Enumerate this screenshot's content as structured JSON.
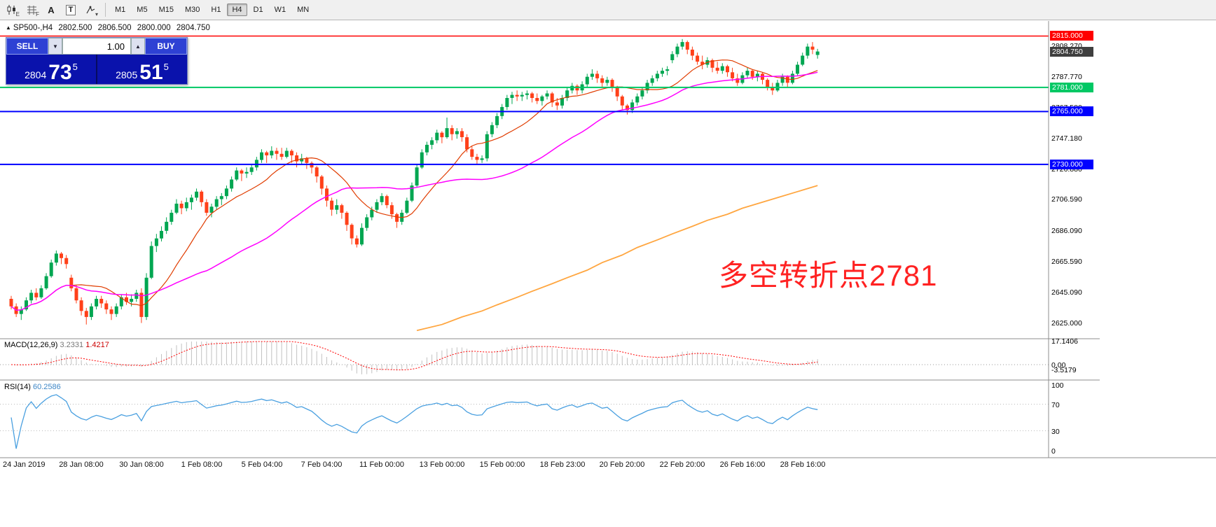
{
  "toolbar": {
    "tools": [
      {
        "name": "chart-type",
        "badge": "E"
      },
      {
        "name": "grid",
        "badge": "F"
      },
      {
        "name": "text",
        "badge": "A"
      },
      {
        "name": "textbox",
        "badge": "T"
      },
      {
        "name": "crosshair",
        "badge": "▾"
      }
    ],
    "timeframes": [
      "M1",
      "M5",
      "M15",
      "M30",
      "H1",
      "H4",
      "D1",
      "W1",
      "MN"
    ],
    "active_timeframe": "H4"
  },
  "chart_header": {
    "arrow": "▲",
    "title": "SP500-,H4",
    "open": "2802.500",
    "high": "2806.500",
    "low": "2800.000",
    "close": "2804.750"
  },
  "trade_panel": {
    "sell_label": "SELL",
    "buy_label": "BUY",
    "volume": "1.00",
    "volume_down_icon": "▼",
    "volume_up_icon": "▲",
    "sell_price": {
      "big": "2804",
      "mid": "73",
      "sup": "5"
    },
    "buy_price": {
      "big": "2805",
      "mid": "51",
      "sup": "5"
    }
  },
  "annotation": {
    "text": "多空转折点2781",
    "color": "#ff2222"
  },
  "levels": [
    {
      "label": "2815.000",
      "value": 2815.0,
      "color": "#FF0000",
      "width": 1.5
    },
    {
      "label": "2781.000",
      "value": 2781.0,
      "color": "#00C864",
      "width": 2
    },
    {
      "label": "2765.000",
      "value": 2765.0,
      "color": "#0000FF",
      "width": 2
    },
    {
      "label": "2730.000",
      "value": 2730.0,
      "color": "#0000FF",
      "width": 2
    }
  ],
  "current_price": {
    "label": "2804.750",
    "value": 2804.75,
    "box_color": "#3f3f3f"
  },
  "price_axis": {
    "ticks": [
      {
        "label": "2808.270",
        "value": 2808.27
      },
      {
        "label": "2787.770",
        "value": 2787.77
      },
      {
        "label": "2767.580",
        "value": 2767.58
      },
      {
        "label": "2747.180",
        "value": 2747.18
      },
      {
        "label": "2726.880",
        "value": 2726.88
      },
      {
        "label": "2706.590",
        "value": 2706.59
      },
      {
        "label": "2686.090",
        "value": 2686.09
      },
      {
        "label": "2665.590",
        "value": 2665.59
      },
      {
        "label": "2645.090",
        "value": 2645.09
      },
      {
        "label": "2625.000",
        "value": 2625.0
      }
    ]
  },
  "time_axis": {
    "labels": [
      "24 Jan 2019",
      "28 Jan 08:00",
      "30 Jan 08:00",
      "1 Feb 08:00",
      "5 Feb 04:00",
      "7 Feb 04:00",
      "11 Feb 00:00",
      "13 Feb 00:00",
      "15 Feb 00:00",
      "18 Feb 23:00",
      "20 Feb 20:00",
      "22 Feb 20:00",
      "26 Feb 16:00",
      "28 Feb 16:00"
    ]
  },
  "indicators": {
    "macd": {
      "name": "MACD(12,26,9)",
      "main_value": "3.2331",
      "signal_value": "1.4217",
      "axis_labels": [
        {
          "label": "17.1406",
          "value": 17.1406
        },
        {
          "label": "0.00",
          "value": 0.0
        },
        {
          "label": "-3.5179",
          "value": -3.5179
        }
      ]
    },
    "rsi": {
      "name": "RSI(14)",
      "value": "60.2586",
      "axis_labels": [
        {
          "label": "100",
          "value": 100
        },
        {
          "label": "70",
          "value": 70
        },
        {
          "label": "30",
          "value": 30
        },
        {
          "label": "0",
          "value": 0
        }
      ]
    }
  },
  "chart_data": {
    "type": "candlestick",
    "symbol": "SP500-",
    "timeframe": "H4",
    "y_range": [
      2622,
      2818
    ],
    "up_color": "#00A651",
    "down_color": "#FF4019",
    "ohlc": [
      [
        2641,
        2643,
        2634,
        2636
      ],
      [
        2636,
        2638,
        2629,
        2631
      ],
      [
        2631,
        2636,
        2627,
        2634
      ],
      [
        2634,
        2642,
        2633,
        2640
      ],
      [
        2640,
        2647,
        2638,
        2645
      ],
      [
        2645,
        2648,
        2640,
        2642
      ],
      [
        2642,
        2650,
        2641,
        2648
      ],
      [
        2648,
        2658,
        2647,
        2656
      ],
      [
        2656,
        2667,
        2655,
        2665
      ],
      [
        2665,
        2673,
        2663,
        2671
      ],
      [
        2671,
        2672,
        2664,
        2668
      ],
      [
        2668,
        2670,
        2661,
        2664
      ],
      [
        2655,
        2657,
        2646,
        2648
      ],
      [
        2648,
        2650,
        2638,
        2640
      ],
      [
        2640,
        2642,
        2630,
        2633
      ],
      [
        2633,
        2635,
        2624,
        2629
      ],
      [
        2629,
        2638,
        2627,
        2636
      ],
      [
        2636,
        2643,
        2634,
        2641
      ],
      [
        2641,
        2643,
        2635,
        2638
      ],
      [
        2638,
        2640,
        2631,
        2634
      ],
      [
        2634,
        2636,
        2627,
        2631
      ],
      [
        2631,
        2638,
        2629,
        2636
      ],
      [
        2636,
        2644,
        2634,
        2642
      ],
      [
        2642,
        2645,
        2637,
        2639
      ],
      [
        2639,
        2644,
        2636,
        2641
      ],
      [
        2641,
        2647,
        2639,
        2645
      ],
      [
        2645,
        2648,
        2625,
        2629
      ],
      [
        2629,
        2658,
        2627,
        2655
      ],
      [
        2655,
        2679,
        2654,
        2676
      ],
      [
        2676,
        2684,
        2672,
        2681
      ],
      [
        2681,
        2689,
        2679,
        2686
      ],
      [
        2686,
        2695,
        2684,
        2692
      ],
      [
        2692,
        2700,
        2690,
        2698
      ],
      [
        2698,
        2707,
        2697,
        2704
      ],
      [
        2704,
        2706,
        2697,
        2701
      ],
      [
        2701,
        2708,
        2699,
        2705
      ],
      [
        2705,
        2710,
        2700,
        2708
      ],
      [
        2708,
        2714,
        2706,
        2712
      ],
      [
        2712,
        2713,
        2702,
        2705
      ],
      [
        2705,
        2707,
        2696,
        2698
      ],
      [
        2698,
        2704,
        2695,
        2702
      ],
      [
        2702,
        2709,
        2700,
        2707
      ],
      [
        2707,
        2711,
        2703,
        2709
      ],
      [
        2709,
        2716,
        2707,
        2714
      ],
      [
        2714,
        2722,
        2712,
        2720
      ],
      [
        2720,
        2728,
        2719,
        2726
      ],
      [
        2726,
        2727,
        2719,
        2724
      ],
      [
        2724,
        2728,
        2721,
        2725
      ],
      [
        2725,
        2730,
        2723,
        2728
      ],
      [
        2728,
        2735,
        2726,
        2733
      ],
      [
        2733,
        2740,
        2731,
        2738
      ],
      [
        2738,
        2739,
        2731,
        2736
      ],
      [
        2736,
        2742,
        2734,
        2739
      ],
      [
        2739,
        2741,
        2733,
        2737
      ],
      [
        2737,
        2741,
        2733,
        2735
      ],
      [
        2735,
        2741,
        2734,
        2739
      ],
      [
        2739,
        2740,
        2731,
        2736
      ],
      [
        2736,
        2738,
        2728,
        2732
      ],
      [
        2732,
        2737,
        2730,
        2734
      ],
      [
        2734,
        2735,
        2727,
        2731
      ],
      [
        2731,
        2732,
        2724,
        2728
      ],
      [
        2728,
        2729,
        2718,
        2722
      ],
      [
        2722,
        2723,
        2710,
        2714
      ],
      [
        2714,
        2716,
        2702,
        2706
      ],
      [
        2706,
        2708,
        2696,
        2700
      ],
      [
        2700,
        2707,
        2697,
        2703
      ],
      [
        2703,
        2704,
        2694,
        2698
      ],
      [
        2698,
        2699,
        2686,
        2690
      ],
      [
        2690,
        2691,
        2677,
        2681
      ],
      [
        2681,
        2683,
        2675,
        2677
      ],
      [
        2677,
        2691,
        2676,
        2688
      ],
      [
        2688,
        2697,
        2686,
        2695
      ],
      [
        2695,
        2702,
        2693,
        2700
      ],
      [
        2700,
        2707,
        2698,
        2705
      ],
      [
        2705,
        2711,
        2703,
        2709
      ],
      [
        2709,
        2710,
        2701,
        2703
      ],
      [
        2703,
        2705,
        2694,
        2697
      ],
      [
        2697,
        2698,
        2688,
        2692
      ],
      [
        2692,
        2700,
        2690,
        2698
      ],
      [
        2698,
        2708,
        2697,
        2706
      ],
      [
        2706,
        2718,
        2705,
        2716
      ],
      [
        2716,
        2730,
        2715,
        2728
      ],
      [
        2728,
        2740,
        2727,
        2738
      ],
      [
        2738,
        2745,
        2736,
        2743
      ],
      [
        2743,
        2748,
        2740,
        2746
      ],
      [
        2746,
        2753,
        2744,
        2751
      ],
      [
        2751,
        2752,
        2744,
        2748
      ],
      [
        2748,
        2761,
        2747,
        2754
      ],
      [
        2754,
        2756,
        2746,
        2750
      ],
      [
        2750,
        2754,
        2747,
        2752
      ],
      [
        2752,
        2754,
        2745,
        2748
      ],
      [
        2748,
        2750,
        2738,
        2740
      ],
      [
        2740,
        2742,
        2733,
        2735
      ],
      [
        2735,
        2737,
        2730,
        2733
      ],
      [
        2733,
        2736,
        2731,
        2734
      ],
      [
        2734,
        2752,
        2732,
        2750
      ],
      [
        2750,
        2758,
        2748,
        2756
      ],
      [
        2756,
        2764,
        2754,
        2762
      ],
      [
        2762,
        2770,
        2760,
        2768
      ],
      [
        2768,
        2776,
        2766,
        2774
      ],
      [
        2774,
        2778,
        2770,
        2776
      ],
      [
        2776,
        2779,
        2772,
        2775
      ],
      [
        2775,
        2778,
        2772,
        2776
      ],
      [
        2776,
        2779,
        2773,
        2777
      ],
      [
        2777,
        2778,
        2771,
        2774
      ],
      [
        2774,
        2777,
        2770,
        2772
      ],
      [
        2772,
        2776,
        2769,
        2775
      ],
      [
        2775,
        2779,
        2773,
        2777
      ],
      [
        2777,
        2778,
        2768,
        2771
      ],
      [
        2771,
        2774,
        2766,
        2769
      ],
      [
        2769,
        2776,
        2767,
        2774
      ],
      [
        2774,
        2781,
        2772,
        2779
      ],
      [
        2779,
        2784,
        2777,
        2782
      ],
      [
        2782,
        2783,
        2776,
        2779
      ],
      [
        2779,
        2785,
        2777,
        2783
      ],
      [
        2783,
        2790,
        2781,
        2788
      ],
      [
        2788,
        2793,
        2786,
        2790
      ],
      [
        2790,
        2792,
        2784,
        2787
      ],
      [
        2787,
        2789,
        2781,
        2784
      ],
      [
        2784,
        2788,
        2782,
        2786
      ],
      [
        2786,
        2787,
        2778,
        2781
      ],
      [
        2781,
        2782,
        2772,
        2775
      ],
      [
        2775,
        2776,
        2766,
        2769
      ],
      [
        2769,
        2770,
        2763,
        2766
      ],
      [
        2766,
        2773,
        2764,
        2771
      ],
      [
        2771,
        2777,
        2769,
        2775
      ],
      [
        2775,
        2781,
        2773,
        2779
      ],
      [
        2779,
        2786,
        2777,
        2784
      ],
      [
        2784,
        2789,
        2782,
        2787
      ],
      [
        2787,
        2792,
        2785,
        2790
      ],
      [
        2790,
        2794,
        2788,
        2792
      ],
      [
        2792,
        2795,
        2789,
        2793
      ],
      [
        2799,
        2805,
        2797,
        2803
      ],
      [
        2803,
        2810,
        2801,
        2808
      ],
      [
        2808,
        2813,
        2806,
        2811
      ],
      [
        2811,
        2812,
        2803,
        2806
      ],
      [
        2806,
        2808,
        2799,
        2802
      ],
      [
        2802,
        2804,
        2796,
        2798
      ],
      [
        2798,
        2802,
        2793,
        2796
      ],
      [
        2796,
        2801,
        2794,
        2799
      ],
      [
        2799,
        2800,
        2791,
        2794
      ],
      [
        2794,
        2798,
        2790,
        2792
      ],
      [
        2792,
        2797,
        2790,
        2795
      ],
      [
        2795,
        2796,
        2788,
        2791
      ],
      [
        2791,
        2794,
        2785,
        2787
      ],
      [
        2787,
        2790,
        2782,
        2784
      ],
      [
        2784,
        2791,
        2783,
        2789
      ],
      [
        2789,
        2794,
        2787,
        2792
      ],
      [
        2792,
        2793,
        2786,
        2788
      ],
      [
        2788,
        2792,
        2785,
        2790
      ],
      [
        2790,
        2791,
        2783,
        2786
      ],
      [
        2786,
        2787,
        2779,
        2781
      ],
      [
        2781,
        2784,
        2776,
        2779
      ],
      [
        2779,
        2786,
        2778,
        2784
      ],
      [
        2784,
        2790,
        2782,
        2788
      ],
      [
        2788,
        2789,
        2781,
        2784
      ],
      [
        2784,
        2792,
        2783,
        2790
      ],
      [
        2790,
        2798,
        2789,
        2796
      ],
      [
        2796,
        2804,
        2795,
        2802
      ],
      [
        2802,
        2810,
        2800,
        2808
      ],
      [
        2808,
        2811,
        2803,
        2806
      ],
      [
        2802.5,
        2806.5,
        2800,
        2804.75
      ]
    ],
    "overlays": {
      "ma_fast": {
        "type": "sma",
        "period": 13,
        "color": "#E03C00"
      },
      "ma_mid": {
        "type": "sma",
        "period": 40,
        "color": "#FF00FF"
      },
      "ma_slow_points": {
        "color": "#FFA640",
        "points": [
          [
            81,
            2620
          ],
          [
            86,
            2624
          ],
          [
            90,
            2629
          ],
          [
            94,
            2633
          ],
          [
            97,
            2637
          ],
          [
            101,
            2642
          ],
          [
            104,
            2646
          ],
          [
            108,
            2651
          ],
          [
            111,
            2655
          ],
          [
            115,
            2660
          ],
          [
            118,
            2665
          ],
          [
            122,
            2670
          ],
          [
            125,
            2675
          ],
          [
            129,
            2680
          ],
          [
            132,
            2684
          ],
          [
            136,
            2689
          ],
          [
            139,
            2693
          ],
          [
            143,
            2697
          ],
          [
            146,
            2701
          ],
          [
            150,
            2705
          ],
          [
            153,
            2708
          ],
          [
            157,
            2712
          ],
          [
            161,
            2716
          ]
        ]
      }
    },
    "macd": {
      "fast": 12,
      "slow": 26,
      "signal": 9,
      "hist_color": "#C2C2C2",
      "signal_color": "#FF0000"
    },
    "rsi": {
      "period": 14,
      "color": "#4AA0E0"
    }
  }
}
